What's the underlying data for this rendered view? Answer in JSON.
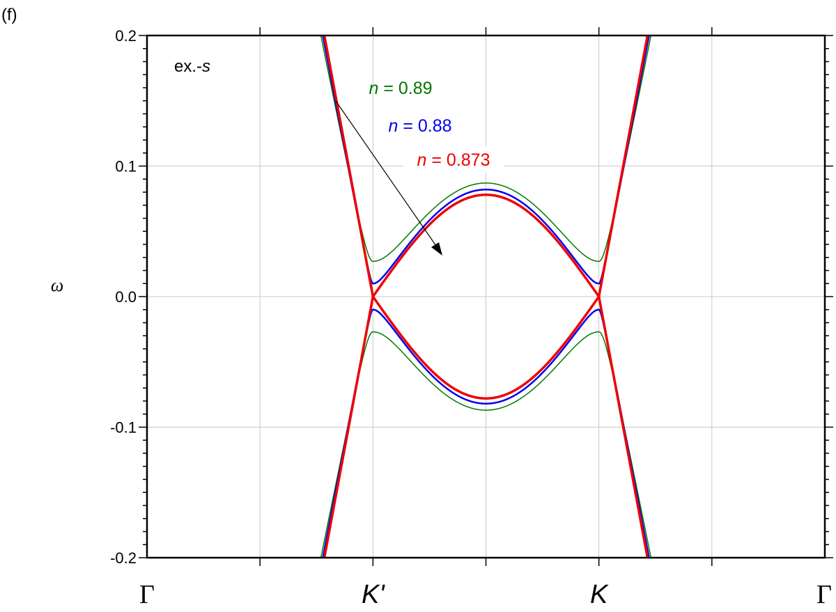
{
  "panel_label": "(f)",
  "inset_label": {
    "prefix": "ex.-",
    "var": "s"
  },
  "ylabel": "ω",
  "chart_data": {
    "type": "line",
    "ylim": [
      -0.2,
      0.2
    ],
    "xlim": [
      0,
      3
    ],
    "grid": true,
    "yticks": [
      {
        "value": 0.2,
        "label": "0.2"
      },
      {
        "value": 0.1,
        "label": "0.1"
      },
      {
        "value": 0.0,
        "label": "0.0"
      },
      {
        "value": -0.1,
        "label": "-0.1"
      },
      {
        "value": -0.2,
        "label": "-0.2"
      }
    ],
    "xticks": [
      {
        "value": 0,
        "label": "Γ",
        "style": "serif"
      },
      {
        "value": 1,
        "label": "K'",
        "style": "italic"
      },
      {
        "value": 2,
        "label": "K",
        "style": "italic"
      },
      {
        "value": 3,
        "label": "Γ",
        "style": "serif"
      }
    ],
    "series": [
      {
        "name": "0.89",
        "color": "#007700",
        "gap": 0.027,
        "peak": 0.087,
        "slope": 0.43,
        "width": 1.5
      },
      {
        "name": "0.88",
        "color": "#0000ee",
        "gap": 0.01,
        "peak": 0.082,
        "slope": 0.45,
        "width": 2.5
      },
      {
        "name": "0.873",
        "color": "#ee0000",
        "gap": 0.0,
        "peak": 0.078,
        "slope": 0.465,
        "width": 3.5
      }
    ],
    "legend_prefix": "n",
    "legend_eq": " = ",
    "legend_placement": "top-center",
    "annotation": "arrow"
  }
}
